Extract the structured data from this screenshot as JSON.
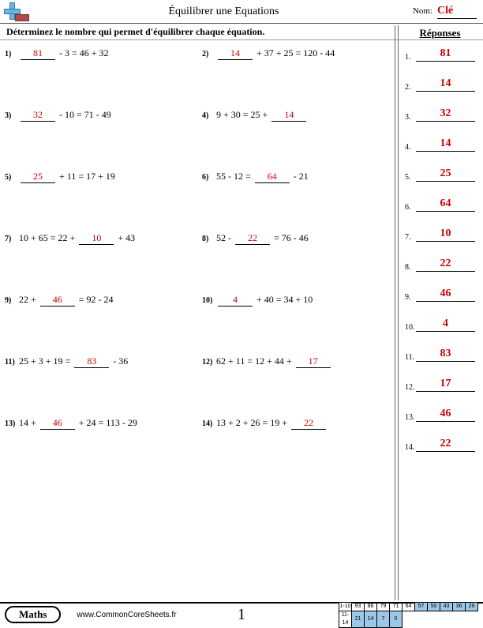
{
  "header": {
    "title": "Équilibrer une Equations",
    "nom_label": "Nom:",
    "nom_value": "Clé"
  },
  "instructions": "Déterminez le nombre qui permet d'équilibrer chaque équation.",
  "answers_title": "Réponses",
  "answers": [
    "81",
    "14",
    "32",
    "14",
    "25",
    "64",
    "10",
    "22",
    "46",
    "4",
    "83",
    "17",
    "46",
    "22"
  ],
  "answer_color": "#cc0000",
  "problems": [
    {
      "n": "1)",
      "pre": "",
      "blank": "81",
      "post": " - 3 = 46 + 32"
    },
    {
      "n": "2)",
      "pre": "",
      "blank": "14",
      "post": " + 37 + 25 = 120 - 44"
    },
    {
      "n": "3)",
      "pre": "",
      "blank": "32",
      "post": " - 10 = 71 - 49"
    },
    {
      "n": "4)",
      "pre": "9 + 30 = 25 + ",
      "blank": "14",
      "post": ""
    },
    {
      "n": "5)",
      "pre": "",
      "blank": "25",
      "post": " + 11 = 17 + 19"
    },
    {
      "n": "6)",
      "pre": "55 - 12 = ",
      "blank": "64",
      "post": " - 21"
    },
    {
      "n": "7)",
      "pre": "10 + 65 = 22 + ",
      "blank": "10",
      "post": " + 43"
    },
    {
      "n": "8)",
      "pre": "52 - ",
      "blank": "22",
      "post": " = 76 - 46"
    },
    {
      "n": "9)",
      "pre": "22 + ",
      "blank": "46",
      "post": " = 92 - 24"
    },
    {
      "n": "10)",
      "pre": "",
      "blank": "4",
      "post": " + 40 = 34 + 10"
    },
    {
      "n": "11)",
      "pre": "25 + 3 + 19 = ",
      "blank": "83",
      "post": " - 36"
    },
    {
      "n": "12)",
      "pre": "62 + 11 = 12 + 44 + ",
      "blank": "17",
      "post": ""
    },
    {
      "n": "13)",
      "pre": "14 + ",
      "blank": "46",
      "post": " + 24 = 113 - 29"
    },
    {
      "n": "14)",
      "pre": "13 + 2 + 26 = 19 + ",
      "blank": "22",
      "post": ""
    }
  ],
  "footer": {
    "subject": "Maths",
    "site": "www.CommonCoreSheets.fr",
    "page": "1",
    "score": {
      "row1_label": "1-10",
      "row1": [
        "93",
        "86",
        "79",
        "71",
        "64",
        "57",
        "50",
        "43",
        "36",
        "29"
      ],
      "row2_label": "11-14",
      "row2": [
        "21",
        "14",
        "7",
        "0"
      ],
      "blue_start_index": 5
    }
  }
}
